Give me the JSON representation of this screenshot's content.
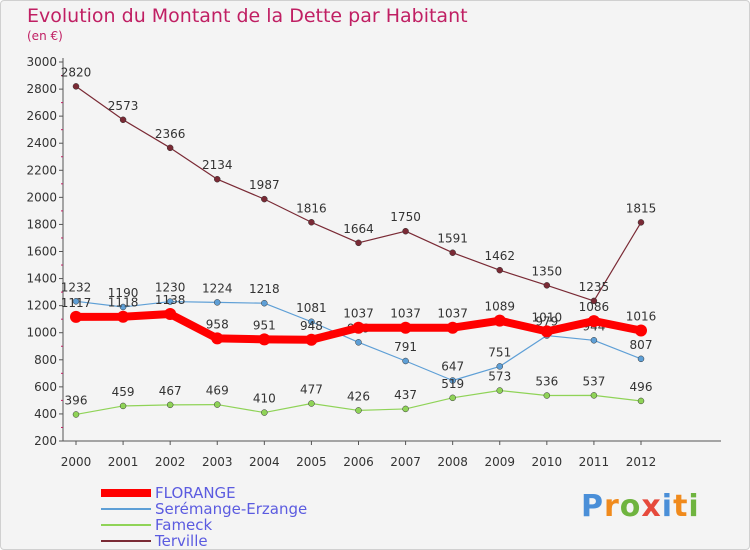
{
  "header": {
    "title": "Evolution du Montant de la Dette par Habitant",
    "unit": "(en €)"
  },
  "logo": {
    "text": "Proxiti"
  },
  "colors": {
    "title": "#c01f63",
    "florange": "#ff0000",
    "seremange": "#5e9fd6",
    "fameck": "#8fd357",
    "terville": "#7a2a35",
    "axis": "#555555",
    "label": "#333333"
  },
  "chart_data": {
    "type": "line",
    "title": "Evolution du Montant de la Dette par Habitant",
    "subtitle": "(en €)",
    "xlabel": "",
    "ylabel": "",
    "x": [
      "2000",
      "2001",
      "2002",
      "2003",
      "2004",
      "2005",
      "2006",
      "2007",
      "2008",
      "2009",
      "2010",
      "2011",
      "2012"
    ],
    "ylim": [
      200,
      3000
    ],
    "yticks": [
      200,
      400,
      600,
      800,
      1000,
      1200,
      1400,
      1600,
      1800,
      2000,
      2200,
      2400,
      2600,
      2800,
      3000
    ],
    "grid": false,
    "legend_position": "bottom-left",
    "series": [
      {
        "name": "Terville",
        "color": "#7a2a35",
        "width": 1.2,
        "values": [
          2820,
          2573,
          2366,
          2134,
          1987,
          1816,
          1664,
          1750,
          1591,
          1462,
          1350,
          1235,
          1815
        ]
      },
      {
        "name": "Serémange-Erzange",
        "color": "#5e9fd6",
        "width": 1.2,
        "values": [
          1232,
          1190,
          1230,
          1224,
          1218,
          1081,
          929,
          791,
          647,
          751,
          979,
          944,
          807
        ]
      },
      {
        "name": "Fameck",
        "color": "#8fd357",
        "width": 1.2,
        "values": [
          396,
          459,
          467,
          469,
          410,
          477,
          426,
          437,
          519,
          573,
          536,
          537,
          496
        ]
      },
      {
        "name": "FLORANGE",
        "color": "#ff0000",
        "width": 8,
        "values": [
          1117,
          1118,
          1138,
          958,
          951,
          948,
          1037,
          1037,
          1037,
          1089,
          1010,
          1086,
          1016
        ]
      }
    ]
  },
  "legend": [
    {
      "label": "FLORANGE",
      "color": "#ff0000",
      "thick": 8
    },
    {
      "label": "Serémange-Erzange",
      "color": "#5e9fd6",
      "thick": 2
    },
    {
      "label": "Fameck",
      "color": "#8fd357",
      "thick": 2
    },
    {
      "label": "Terville",
      "color": "#7a2a35",
      "thick": 2
    }
  ]
}
